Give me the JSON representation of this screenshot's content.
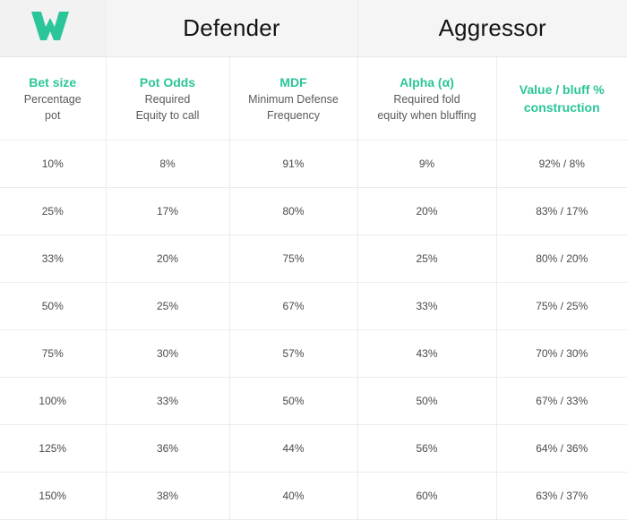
{
  "brand": {
    "logo_icon": "w-logo-icon",
    "accent_color": "#2bc59a"
  },
  "groups": {
    "defender": "Defender",
    "aggressor": "Aggressor"
  },
  "columns": [
    {
      "title": "Bet size",
      "sub1": "Percentage",
      "sub2": "pot"
    },
    {
      "title": "Pot Odds",
      "sub1": "Required",
      "sub2": "Equity to call"
    },
    {
      "title": "MDF",
      "sub1": "Minimum Defense",
      "sub2": "Frequency"
    },
    {
      "title": "Alpha (α)",
      "sub1": "Required fold",
      "sub2": "equity when bluffing"
    },
    {
      "title1": "Value / bluff %",
      "title2": "construction"
    }
  ],
  "rows": [
    [
      "10%",
      "8%",
      "91%",
      "9%",
      "92% / 8%"
    ],
    [
      "25%",
      "17%",
      "80%",
      "20%",
      "83% / 17%"
    ],
    [
      "33%",
      "20%",
      "75%",
      "25%",
      "80% / 20%"
    ],
    [
      "50%",
      "25%",
      "67%",
      "33%",
      "75% / 25%"
    ],
    [
      "75%",
      "30%",
      "57%",
      "43%",
      "70% / 30%"
    ],
    [
      "100%",
      "33%",
      "50%",
      "50%",
      "67% / 33%"
    ],
    [
      "125%",
      "36%",
      "44%",
      "56%",
      "64% / 36%"
    ],
    [
      "150%",
      "38%",
      "40%",
      "60%",
      "63% / 37%"
    ]
  ]
}
